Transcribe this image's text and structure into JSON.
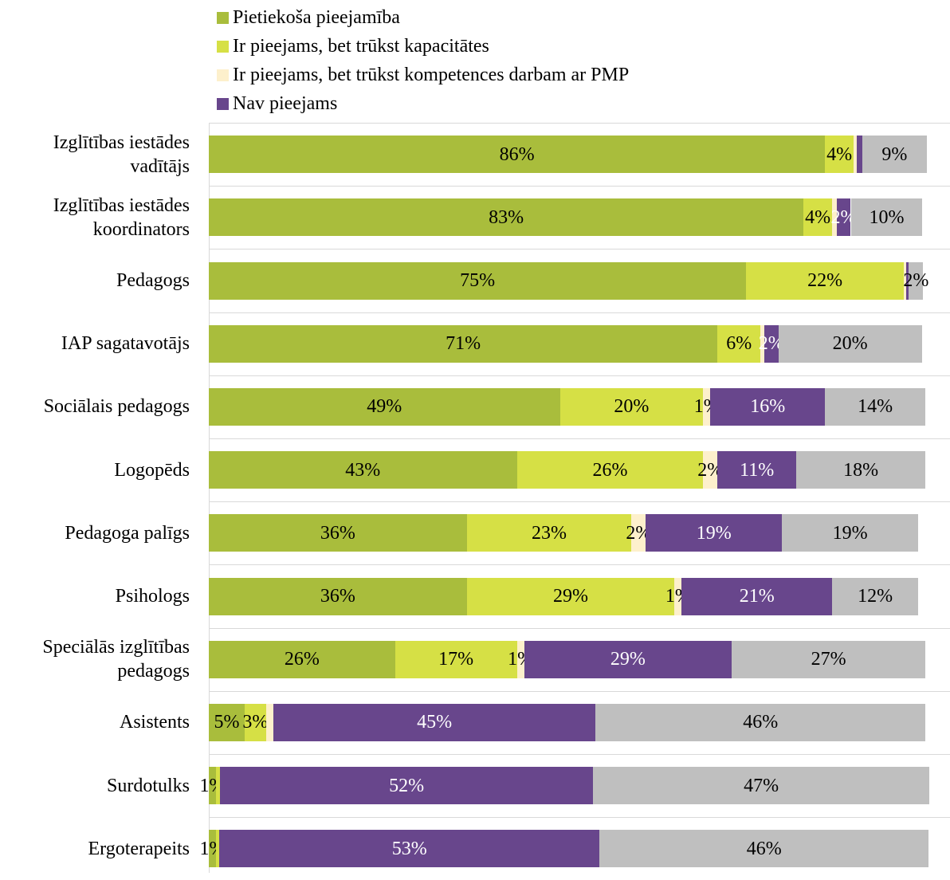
{
  "chart_data": {
    "type": "stacked_bar_horizontal",
    "categories": [
      "Izglītības iestādes vadītājs",
      "Izglītības iestādes koordinators",
      "Pedagogs",
      "IAP sagatavotājs",
      "Sociālais pedagogs",
      "Logopēds",
      "Pedagoga palīgs",
      "Psihologs",
      "Speciālās izglītības pedagogs",
      "Asistents",
      "Surdotulks",
      "Ergoterapeits"
    ],
    "xlim": [
      0,
      100
    ],
    "series": [
      {
        "name": "Pietiekoša pieejamība",
        "color": "#a9bd3c",
        "label_color": "#000000",
        "values": [
          86,
          83,
          75,
          71,
          49,
          43,
          36,
          36,
          26,
          5,
          1,
          1
        ],
        "value_labels": [
          "86%",
          "83%",
          "75%",
          "71%",
          "49%",
          "43%",
          "36%",
          "36%",
          "26%",
          "5%",
          "1%",
          "1%"
        ]
      },
      {
        "name": "Ir pieejams, bet trūkst kapacitātes",
        "color": "#d6e045",
        "label_color": "#000000",
        "values": [
          4,
          4,
          22,
          6,
          20,
          26,
          23,
          29,
          17,
          3,
          0.6,
          0.5
        ],
        "value_labels": [
          "4%",
          "4%",
          "22%",
          "6%",
          "20%",
          "26%",
          "23%",
          "29%",
          "17%",
          "3%",
          null,
          null
        ]
      },
      {
        "name": "Ir pieejams, bet trūkst kompetences darbam ar PMP",
        "color": "#fdf0cc",
        "label_color": "#000000",
        "values": [
          0.4,
          0.6,
          0.3,
          0.5,
          1,
          2,
          2,
          1,
          1,
          1,
          0,
          0
        ],
        "value_labels": [
          null,
          null,
          null,
          null,
          "1%",
          "2%",
          "2%",
          "1%",
          "1%",
          null,
          null,
          null
        ]
      },
      {
        "name": "Nav pieejams",
        "color": "#68468c",
        "label_color": "#ffffff",
        "values": [
          0.8,
          2,
          0.4,
          2,
          16,
          11,
          19,
          21,
          29,
          45,
          52,
          53
        ],
        "value_labels": [
          null,
          "2%",
          null,
          "2%",
          "16%",
          "11%",
          "19%",
          "21%",
          "29%",
          "45%",
          "52%",
          "53%"
        ]
      },
      {
        "color": "#bfbfbf",
        "label_color": "#000000",
        "values": [
          9,
          10,
          2,
          20,
          14,
          18,
          19,
          12,
          27,
          46,
          47,
          46
        ],
        "value_labels": [
          "9%",
          "10%",
          "2%",
          "20%",
          "14%",
          "18%",
          "19%",
          "12%",
          "27%",
          "46%",
          "47%",
          "46%"
        ]
      }
    ]
  }
}
